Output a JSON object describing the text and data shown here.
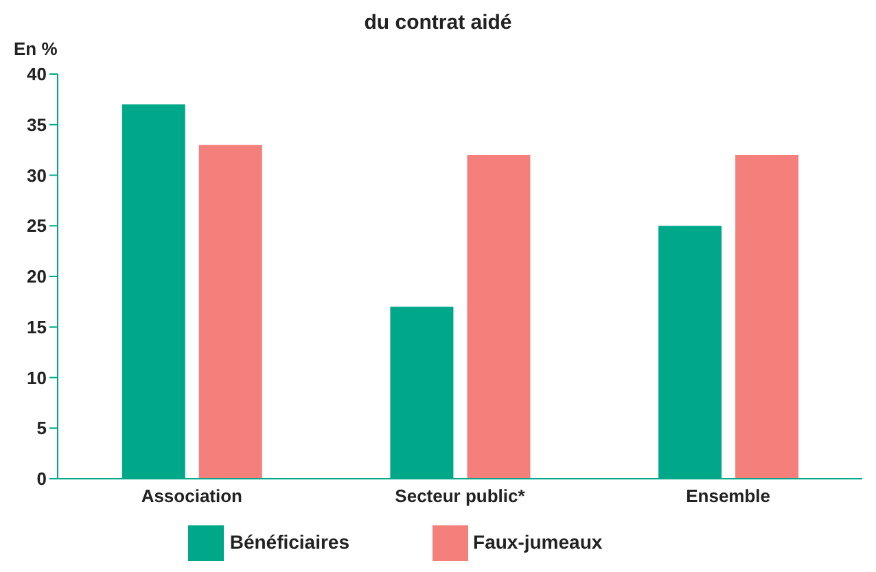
{
  "chart_data": {
    "type": "bar",
    "title": "du contrat aidé",
    "ylabel": "En %",
    "categories": [
      "Association",
      "Secteur public*",
      "Ensemble"
    ],
    "series": [
      {
        "name": "Bénéficiaires",
        "color": "#00a88a",
        "values": [
          37,
          17,
          25
        ]
      },
      {
        "name": "Faux-jumeaux",
        "color": "#f47f7b",
        "values": [
          33,
          32,
          32
        ]
      }
    ],
    "ylim": [
      0,
      40
    ],
    "yticks": [
      0,
      5,
      10,
      15,
      20,
      25,
      30,
      35,
      40
    ],
    "grid": false,
    "legend": "bottom"
  }
}
